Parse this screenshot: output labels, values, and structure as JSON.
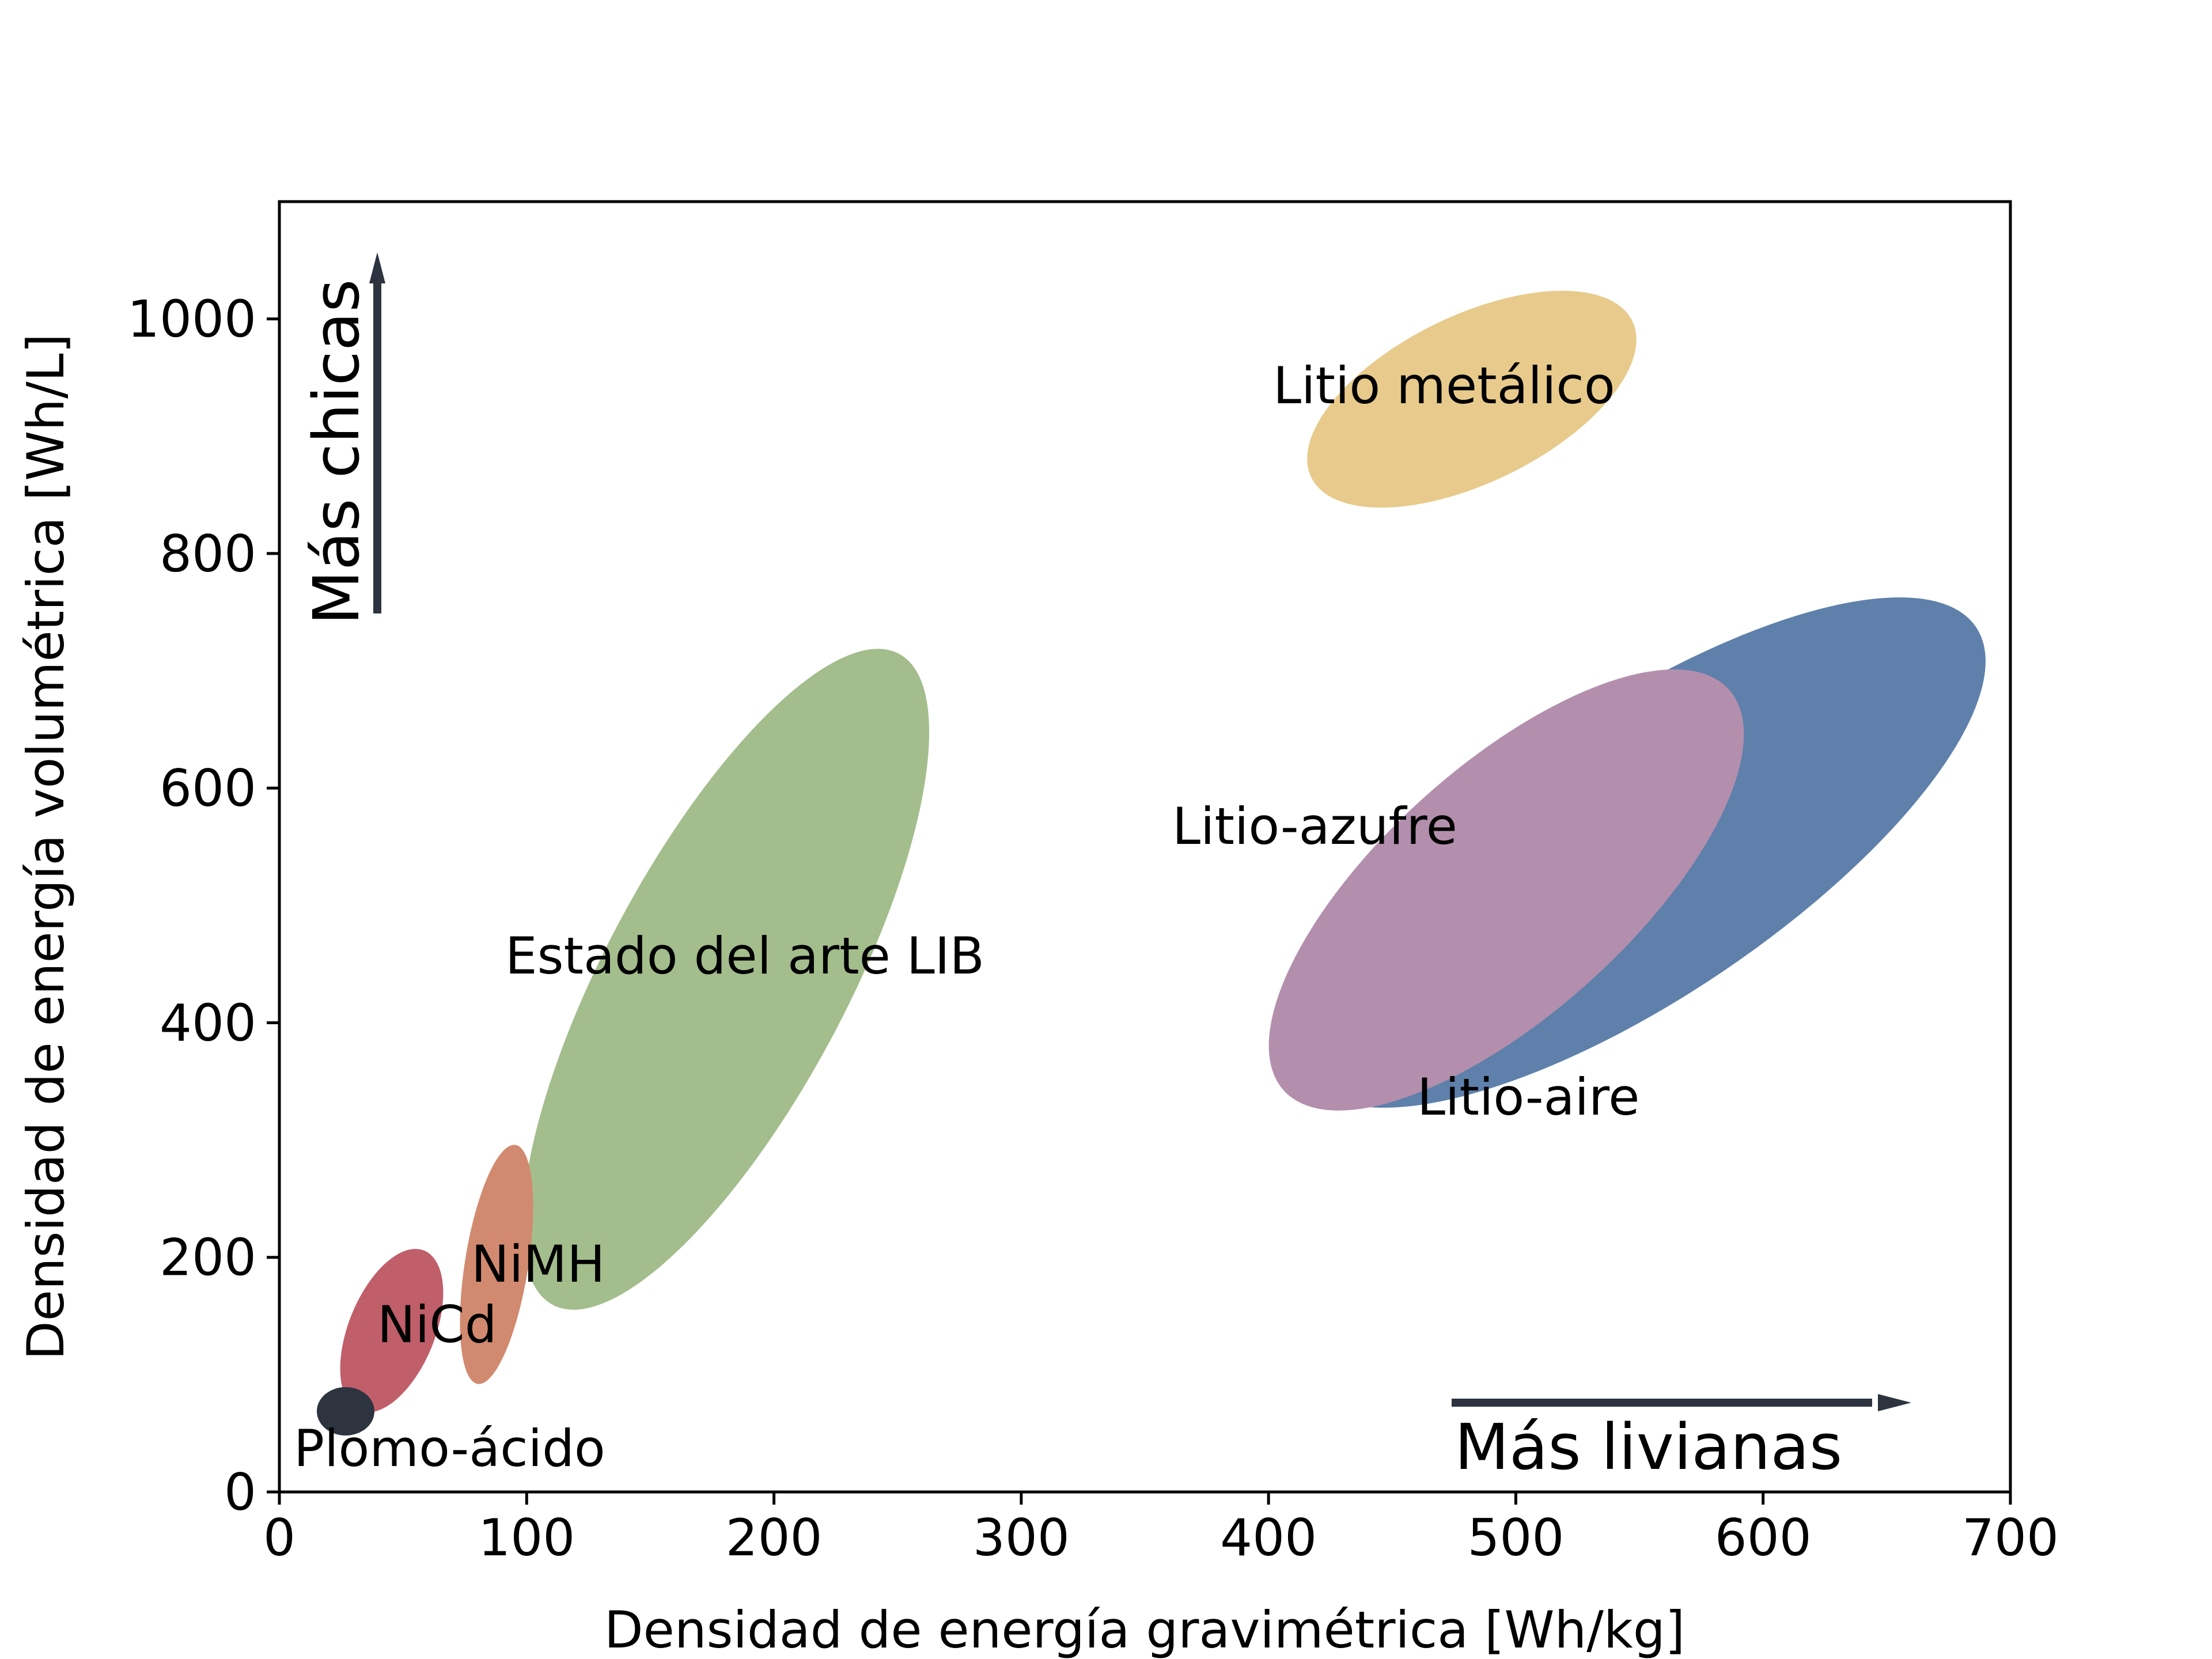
{
  "chart_data": {
    "type": "scatter",
    "title": "",
    "xlabel": "Densidad de energía gravimétrica [Wh/kg]",
    "ylabel": "Densidad de energía volumétrica [Wh/L]",
    "xlim": [
      0,
      700
    ],
    "ylim": [
      0,
      1100
    ],
    "x_ticks": [
      0,
      100,
      200,
      300,
      400,
      500,
      600,
      700
    ],
    "y_ticks": [
      0,
      200,
      400,
      600,
      800,
      1000
    ],
    "grid": false,
    "regions": [
      {
        "name": "Litio-aire",
        "color": "#5e80ab",
        "center": [
          550,
          500
        ],
        "x_range": [
          415,
          685
        ],
        "y_range": [
          245,
          775
        ],
        "label": "Litio-aire"
      },
      {
        "name": "Litio-azufre",
        "color": "#b38fad",
        "center": [
          478,
          520
        ],
        "x_range": [
          390,
          570
        ],
        "y_range": [
          365,
          685
        ],
        "label": "Litio-azufre"
      },
      {
        "name": "Litio metálico",
        "color": "#e8cb8c",
        "center": [
          475,
          910
        ],
        "x_range": [
          415,
          535
        ],
        "y_range": [
          815,
          1025
        ],
        "label": "Litio metálico"
      },
      {
        "name": "Estado del arte LIB",
        "color": "#a3bd8c",
        "center": [
          180,
          440
        ],
        "x_range": [
          105,
          255
        ],
        "y_range": [
          165,
          715
        ],
        "label": "Estado del arte LIB"
      },
      {
        "name": "NiMH",
        "color": "#d18a70",
        "center": [
          87,
          180
        ],
        "x_range": [
          75,
          100
        ],
        "y_range": [
          80,
          285
        ],
        "label": "NiMH"
      },
      {
        "name": "NiCd",
        "color": "#c05e6a",
        "center": [
          47,
          130
        ],
        "x_range": [
          28,
          66
        ],
        "y_range": [
          55,
          205
        ],
        "label": "NiCd"
      },
      {
        "name": "Plomo-ácido",
        "color": "#2d3440",
        "center": [
          27,
          67
        ],
        "x_range": [
          17,
          37
        ],
        "y_range": [
          47,
          87
        ],
        "label": "Plomo-ácido"
      }
    ],
    "annotations": [
      {
        "text": "Más chicas",
        "direction": "up",
        "color": "#2d3440"
      },
      {
        "text": "Más livianas",
        "direction": "right",
        "color": "#2d3440"
      }
    ]
  }
}
